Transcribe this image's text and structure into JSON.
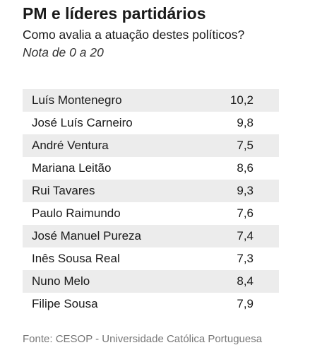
{
  "header": {
    "title": "PM e líderes partidários",
    "subtitle": "Como avalia a atuação destes políticos?",
    "note": "Nota de 0 a 20"
  },
  "table": {
    "rows": [
      [
        "Luís Montenegro",
        "10,2"
      ],
      [
        "José Luís Carneiro",
        "9,8"
      ],
      [
        "André Ventura",
        "7,5"
      ],
      [
        "Mariana Leitão",
        "8,6"
      ],
      [
        "Rui Tavares",
        "9,3"
      ],
      [
        "Paulo Raimundo",
        "7,6"
      ],
      [
        "José Manuel Pureza",
        "7,4"
      ],
      [
        "Inês Sousa Real",
        "7,3"
      ],
      [
        "Nuno Melo",
        "8,4"
      ],
      [
        "Filipe Sousa",
        "7,9"
      ]
    ]
  },
  "footer": {
    "source": "Fonte: CESOP - Universidade Católica Portuguesa"
  }
}
